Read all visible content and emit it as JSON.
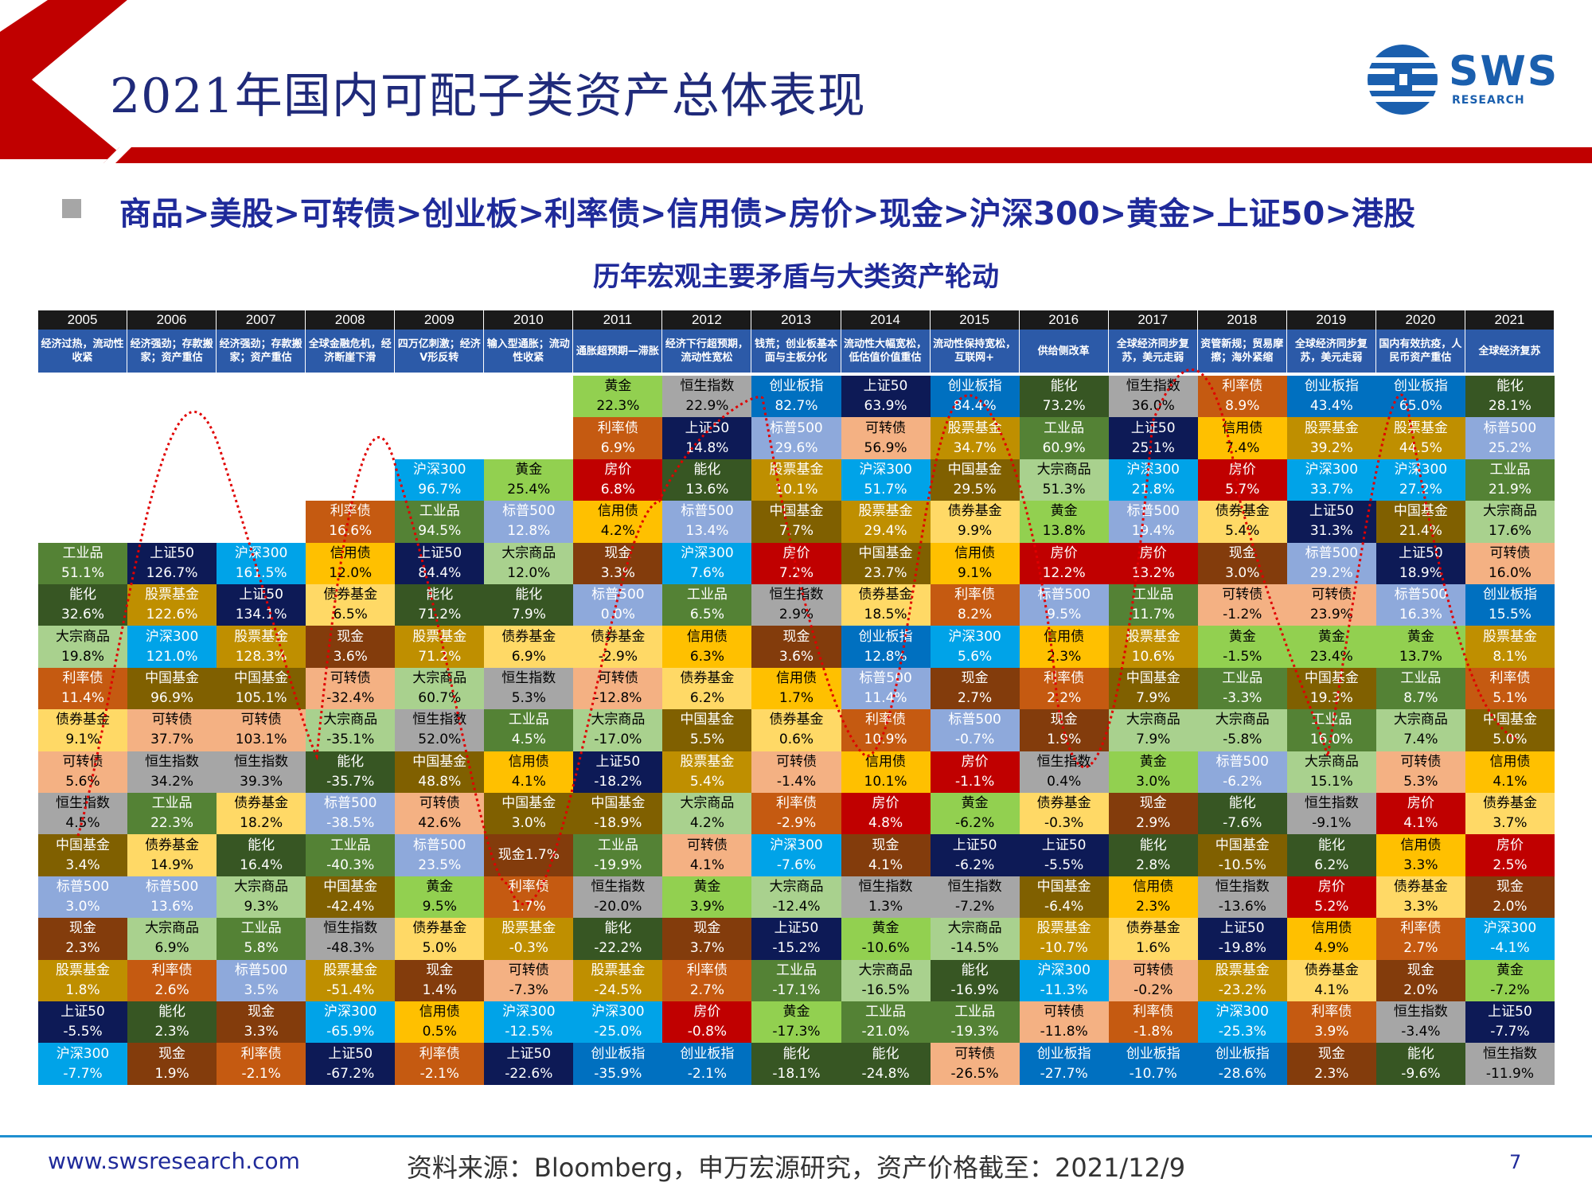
{
  "title": "2021年国内可配子类资产总体表现",
  "ranking": "商品>美股>可转债>创业板>利率债>信用债>房价>现金>沪深300>黄金>上证50>港股",
  "subtitle": "历年宏观主要矛盾与大类资产轮动",
  "logo": {
    "name": "SWS",
    "sub": "RESEARCH"
  },
  "footer": {
    "website": "www.swsresearch.com",
    "source": "资料来源：Bloomberg，申万宏源研究，资产价格截至：2021/12/9",
    "page": "7"
  },
  "colors": {
    "工业品": "#548235",
    "上证50": "#0d1a56",
    "沪深300": "#00a3e8",
    "利率债": "#c55a11",
    "黄金": "#92d050",
    "恒生指数": "#a6a6a6",
    "创业板指": "#0070c0",
    "能化": "#375623",
    "股票基金": "#bf8f00",
    "信用债": "#ffc000",
    "标普500": "#8ea9db",
    "可转债": "#f4b183",
    "大宗商品": "#a9d18e",
    "中国基金": "#806000",
    "房价": "#c00000",
    "现金": "#833c0c",
    "债券基金": "#ffd966"
  },
  "table": {
    "years": [
      "2005",
      "2006",
      "2007",
      "2008",
      "2009",
      "2010",
      "2011",
      "2012",
      "2013",
      "2014",
      "2015",
      "2016",
      "2017",
      "2018",
      "2019",
      "2020",
      "2021"
    ],
    "themes": [
      "经济过热，流动性收紧",
      "经济强劲；存款搬家；资产重估",
      "经济强劲；存款搬家；资产重估",
      "全球金融危机，经济断崖下滑",
      "四万亿刺激；经济V形反转",
      "输入型通胀；流动性收紧",
      "通胀超预期—滞胀",
      "经济下行超预期，流动性宽松",
      "钱荒；创业板基本面与主板分化",
      "流动性大幅宽松，低估值价值重估",
      "流动性保持宽松，互联网+",
      "供给侧改革",
      "全球经济同步复苏，美元走弱",
      "资管新规；贸易摩擦；海外紧缩",
      "全球经济同步复苏，美元走弱",
      "国内有效抗疫，人民币资产重估",
      "全球经济复苏"
    ],
    "columns": [
      [
        [
          "工业品",
          "51.1%"
        ],
        [
          "能化",
          "32.6%"
        ],
        [
          "大宗商品",
          "19.8%"
        ],
        [
          "利率债",
          "11.4%"
        ],
        [
          "债券基金",
          "9.1%"
        ],
        [
          "可转债",
          "5.6%"
        ],
        [
          "恒生指数",
          "4.5%"
        ],
        [
          "中国基金",
          "3.4%"
        ],
        [
          "标普500",
          "3.0%"
        ],
        [
          "现金",
          "2.3%"
        ],
        [
          "股票基金",
          "1.8%"
        ],
        [
          "上证50",
          "-5.5%"
        ],
        [
          "沪深300",
          "-7.7%"
        ]
      ],
      [
        [
          "上证50",
          "126.7%"
        ],
        [
          "股票基金",
          "122.6%"
        ],
        [
          "沪深300",
          "121.0%"
        ],
        [
          "中国基金",
          "96.9%"
        ],
        [
          "可转债",
          "37.7%"
        ],
        [
          "恒生指数",
          "34.2%"
        ],
        [
          "工业品",
          "22.3%"
        ],
        [
          "债券基金",
          "14.9%"
        ],
        [
          "标普500",
          "13.6%"
        ],
        [
          "大宗商品",
          "6.9%"
        ],
        [
          "利率债",
          "2.6%"
        ],
        [
          "能化",
          "2.3%"
        ],
        [
          "现金",
          "1.9%"
        ]
      ],
      [
        [
          "沪深300",
          "161.5%"
        ],
        [
          "上证50",
          "134.1%"
        ],
        [
          "股票基金",
          "128.3%"
        ],
        [
          "中国基金",
          "105.1%"
        ],
        [
          "可转债",
          "103.1%"
        ],
        [
          "恒生指数",
          "39.3%"
        ],
        [
          "债券基金",
          "18.2%"
        ],
        [
          "能化",
          "16.4%"
        ],
        [
          "大宗商品",
          "9.3%"
        ],
        [
          "工业品",
          "5.8%"
        ],
        [
          "标普500",
          "3.5%"
        ],
        [
          "现金",
          "3.3%"
        ],
        [
          "利率债",
          "-2.1%"
        ]
      ],
      [
        [
          "利率债",
          "16.6%"
        ],
        [
          "信用债",
          "12.0%"
        ],
        [
          "债券基金",
          "6.5%"
        ],
        [
          "现金",
          "3.6%"
        ],
        [
          "可转债",
          "-32.4%"
        ],
        [
          "大宗商品",
          "-35.1%"
        ],
        [
          "能化",
          "-35.7%"
        ],
        [
          "标普500",
          "-38.5%"
        ],
        [
          "工业品",
          "-40.3%"
        ],
        [
          "中国基金",
          "-42.4%"
        ],
        [
          "恒生指数",
          "-48.3%"
        ],
        [
          "股票基金",
          "-51.4%"
        ],
        [
          "沪深300",
          "-65.9%"
        ],
        [
          "上证50",
          "-67.2%"
        ]
      ],
      [
        [
          "沪深300",
          "96.7%"
        ],
        [
          "工业品",
          "94.5%"
        ],
        [
          "上证50",
          "84.4%"
        ],
        [
          "能化",
          "71.2%"
        ],
        [
          "股票基金",
          "71.2%"
        ],
        [
          "大宗商品",
          "60.7%"
        ],
        [
          "恒生指数",
          "52.0%"
        ],
        [
          "中国基金",
          "48.8%"
        ],
        [
          "可转债",
          "42.6%"
        ],
        [
          "标普500",
          "23.5%"
        ],
        [
          "黄金",
          "9.5%"
        ],
        [
          "债券基金",
          "5.0%"
        ],
        [
          "现金",
          "1.4%"
        ],
        [
          "信用债",
          "0.5%"
        ],
        [
          "利率债",
          "-2.1%"
        ]
      ],
      [
        [
          "黄金",
          "25.4%"
        ],
        [
          "标普500",
          "12.8%"
        ],
        [
          "大宗商品",
          "12.0%"
        ],
        [
          "能化",
          "7.9%"
        ],
        [
          "债券基金",
          "6.9%"
        ],
        [
          "恒生指数",
          "5.3%"
        ],
        [
          "工业品",
          "4.5%"
        ],
        [
          "信用债",
          "4.1%"
        ],
        [
          "中国基金",
          "3.0%"
        ],
        [
          "现金1.7%",
          ""
        ],
        [
          "利率债",
          "1.7%"
        ],
        [
          "股票基金",
          "-0.3%"
        ],
        [
          "可转债",
          "-7.3%"
        ],
        [
          "沪深300",
          "-12.5%"
        ],
        [
          "上证50",
          "-22.6%"
        ]
      ],
      [
        [
          "黄金",
          "22.3%"
        ],
        [
          "利率债",
          "6.9%"
        ],
        [
          "房价",
          "6.8%"
        ],
        [
          "信用债",
          "4.2%"
        ],
        [
          "现金",
          "3.3%"
        ],
        [
          "标普500",
          "0.0%"
        ],
        [
          "债券基金",
          "-2.9%"
        ],
        [
          "可转债",
          "-12.8%"
        ],
        [
          "大宗商品",
          "-17.0%"
        ],
        [
          "上证50",
          "-18.2%"
        ],
        [
          "中国基金",
          "-18.9%"
        ],
        [
          "工业品",
          "-19.9%"
        ],
        [
          "恒生指数",
          "-20.0%"
        ],
        [
          "能化",
          "-22.2%"
        ],
        [
          "股票基金",
          "-24.5%"
        ],
        [
          "沪深300",
          "-25.0%"
        ],
        [
          "创业板指",
          "-35.9%"
        ]
      ],
      [
        [
          "恒生指数",
          "22.9%"
        ],
        [
          "上证50",
          "14.8%"
        ],
        [
          "能化",
          "13.6%"
        ],
        [
          "标普500",
          "13.4%"
        ],
        [
          "沪深300",
          "7.6%"
        ],
        [
          "工业品",
          "6.5%"
        ],
        [
          "信用债",
          "6.3%"
        ],
        [
          "债券基金",
          "6.2%"
        ],
        [
          "中国基金",
          "5.5%"
        ],
        [
          "股票基金",
          "5.4%"
        ],
        [
          "大宗商品",
          "4.2%"
        ],
        [
          "可转债",
          "4.1%"
        ],
        [
          "黄金",
          "3.9%"
        ],
        [
          "现金",
          "3.7%"
        ],
        [
          "利率债",
          "2.7%"
        ],
        [
          "房价",
          "-0.8%"
        ],
        [
          "创业板指",
          "-2.1%"
        ]
      ],
      [
        [
          "创业板指",
          "82.7%"
        ],
        [
          "标普500",
          "29.6%"
        ],
        [
          "股票基金",
          "10.1%"
        ],
        [
          "中国基金",
          "7.7%"
        ],
        [
          "房价",
          "7.2%"
        ],
        [
          "恒生指数",
          "2.9%"
        ],
        [
          "现金",
          "3.6%"
        ],
        [
          "信用债",
          "1.7%"
        ],
        [
          "债券基金",
          "0.6%"
        ],
        [
          "可转债",
          "-1.4%"
        ],
        [
          "利率债",
          "-2.9%"
        ],
        [
          "沪深300",
          "-7.6%"
        ],
        [
          "大宗商品",
          "-12.4%"
        ],
        [
          "上证50",
          "-15.2%"
        ],
        [
          "工业品",
          "-17.1%"
        ],
        [
          "黄金",
          "-17.3%"
        ],
        [
          "能化",
          "-18.1%"
        ]
      ],
      [
        [
          "上证50",
          "63.9%"
        ],
        [
          "可转债",
          "56.9%"
        ],
        [
          "沪深300",
          "51.7%"
        ],
        [
          "股票基金",
          "29.4%"
        ],
        [
          "中国基金",
          "23.7%"
        ],
        [
          "债券基金",
          "18.5%"
        ],
        [
          "创业板指",
          "12.8%"
        ],
        [
          "标普500",
          "11.4%"
        ],
        [
          "利率债",
          "10.9%"
        ],
        [
          "信用债",
          "10.1%"
        ],
        [
          "房价",
          "4.8%"
        ],
        [
          "现金",
          "4.1%"
        ],
        [
          "恒生指数",
          "1.3%"
        ],
        [
          "黄金",
          "-10.6%"
        ],
        [
          "大宗商品",
          "-16.5%"
        ],
        [
          "工业品",
          "-21.0%"
        ],
        [
          "能化",
          "-24.8%"
        ]
      ],
      [
        [
          "创业板指",
          "84.4%"
        ],
        [
          "股票基金",
          "34.7%"
        ],
        [
          "中国基金",
          "29.5%"
        ],
        [
          "债券基金",
          "9.9%"
        ],
        [
          "信用债",
          "9.1%"
        ],
        [
          "利率债",
          "8.2%"
        ],
        [
          "沪深300",
          "5.6%"
        ],
        [
          "现金",
          "2.7%"
        ],
        [
          "标普500",
          "-0.7%"
        ],
        [
          "房价",
          "-1.1%"
        ],
        [
          "黄金",
          "-6.2%"
        ],
        [
          "上证50",
          "-6.2%"
        ],
        [
          "恒生指数",
          "-7.2%"
        ],
        [
          "大宗商品",
          "-14.5%"
        ],
        [
          "能化",
          "-16.9%"
        ],
        [
          "工业品",
          "-19.3%"
        ],
        [
          "可转债",
          "-26.5%"
        ]
      ],
      [
        [
          "能化",
          "73.2%"
        ],
        [
          "工业品",
          "60.9%"
        ],
        [
          "大宗商品",
          "51.3%"
        ],
        [
          "黄金",
          "13.8%"
        ],
        [
          "房价",
          "12.2%"
        ],
        [
          "标普500",
          "9.5%"
        ],
        [
          "信用债",
          "2.3%"
        ],
        [
          "利率债",
          "2.2%"
        ],
        [
          "现金",
          "1.9%"
        ],
        [
          "恒生指数",
          "0.4%"
        ],
        [
          "债券基金",
          "-0.3%"
        ],
        [
          "上证50",
          "-5.5%"
        ],
        [
          "中国基金",
          "-6.4%"
        ],
        [
          "股票基金",
          "-10.7%"
        ],
        [
          "沪深300",
          "-11.3%"
        ],
        [
          "可转债",
          "-11.8%"
        ],
        [
          "创业板指",
          "-27.7%"
        ]
      ],
      [
        [
          "恒生指数",
          "36.0%"
        ],
        [
          "上证50",
          "25.1%"
        ],
        [
          "沪深300",
          "21.8%"
        ],
        [
          "标普500",
          "19.4%"
        ],
        [
          "房价",
          "13.2%"
        ],
        [
          "工业品",
          "11.7%"
        ],
        [
          "股票基金",
          "10.6%"
        ],
        [
          "中国基金",
          "7.9%"
        ],
        [
          "大宗商品",
          "7.9%"
        ],
        [
          "黄金",
          "3.0%"
        ],
        [
          "现金",
          "2.9%"
        ],
        [
          "能化",
          "2.8%"
        ],
        [
          "信用债",
          "2.3%"
        ],
        [
          "债券基金",
          "1.6%"
        ],
        [
          "可转债",
          "-0.2%"
        ],
        [
          "利率债",
          "-1.8%"
        ],
        [
          "创业板指",
          "-10.7%"
        ]
      ],
      [
        [
          "利率债",
          "8.9%"
        ],
        [
          "信用债",
          "7.4%"
        ],
        [
          "房价",
          "5.7%"
        ],
        [
          "债券基金",
          "5.4%"
        ],
        [
          "现金",
          "3.0%"
        ],
        [
          "可转债",
          "-1.2%"
        ],
        [
          "黄金",
          "-1.5%"
        ],
        [
          "工业品",
          "-3.3%"
        ],
        [
          "大宗商品",
          "-5.8%"
        ],
        [
          "标普500",
          "-6.2%"
        ],
        [
          "能化",
          "-7.6%"
        ],
        [
          "中国基金",
          "-10.5%"
        ],
        [
          "恒生指数",
          "-13.6%"
        ],
        [
          "上证50",
          "-19.8%"
        ],
        [
          "股票基金",
          "-23.2%"
        ],
        [
          "沪深300",
          "-25.3%"
        ],
        [
          "创业板指",
          "-28.6%"
        ]
      ],
      [
        [
          "创业板指",
          "43.4%"
        ],
        [
          "股票基金",
          "39.2%"
        ],
        [
          "沪深300",
          "33.7%"
        ],
        [
          "上证50",
          "31.3%"
        ],
        [
          "标普500",
          "29.2%"
        ],
        [
          "可转债",
          "23.9%"
        ],
        [
          "黄金",
          "23.4%"
        ],
        [
          "中国基金",
          "19.3%"
        ],
        [
          "工业品",
          "16.0%"
        ],
        [
          "大宗商品",
          "15.1%"
        ],
        [
          "恒生指数",
          "-9.1%"
        ],
        [
          "能化",
          "6.2%"
        ],
        [
          "房价",
          "5.2%"
        ],
        [
          "信用债",
          "4.9%"
        ],
        [
          "债券基金",
          "4.1%"
        ],
        [
          "利率债",
          "3.9%"
        ],
        [
          "现金",
          "2.3%"
        ]
      ],
      [
        [
          "创业板指",
          "65.0%"
        ],
        [
          "股票基金",
          "44.5%"
        ],
        [
          "沪深300",
          "27.2%"
        ],
        [
          "中国基金",
          "21.4%"
        ],
        [
          "上证50",
          "18.9%"
        ],
        [
          "标普500",
          "16.3%"
        ],
        [
          "黄金",
          "13.7%"
        ],
        [
          "工业品",
          "8.7%"
        ],
        [
          "大宗商品",
          "7.4%"
        ],
        [
          "可转债",
          "5.3%"
        ],
        [
          "房价",
          "4.1%"
        ],
        [
          "信用债",
          "3.3%"
        ],
        [
          "债券基金",
          "3.3%"
        ],
        [
          "利率债",
          "2.7%"
        ],
        [
          "现金",
          "2.0%"
        ],
        [
          "恒生指数",
          "-3.4%"
        ],
        [
          "能化",
          "-9.6%"
        ]
      ],
      [
        [
          "能化",
          "28.1%"
        ],
        [
          "标普500",
          "25.2%"
        ],
        [
          "工业品",
          "21.9%"
        ],
        [
          "大宗商品",
          "17.6%"
        ],
        [
          "可转债",
          "16.0%"
        ],
        [
          "创业板指",
          "15.5%"
        ],
        [
          "股票基金",
          "8.1%"
        ],
        [
          "利率债",
          "5.1%"
        ],
        [
          "中国基金",
          "5.0%"
        ],
        [
          "信用债",
          "4.1%"
        ],
        [
          "债券基金",
          "3.7%"
        ],
        [
          "房价",
          "2.5%"
        ],
        [
          "现金",
          "2.0%"
        ],
        [
          "沪深300",
          "-4.1%"
        ],
        [
          "黄金",
          "-7.2%"
        ],
        [
          "上证50",
          "-7.7%"
        ],
        [
          "恒生指数",
          "-11.9%"
        ]
      ]
    ]
  }
}
